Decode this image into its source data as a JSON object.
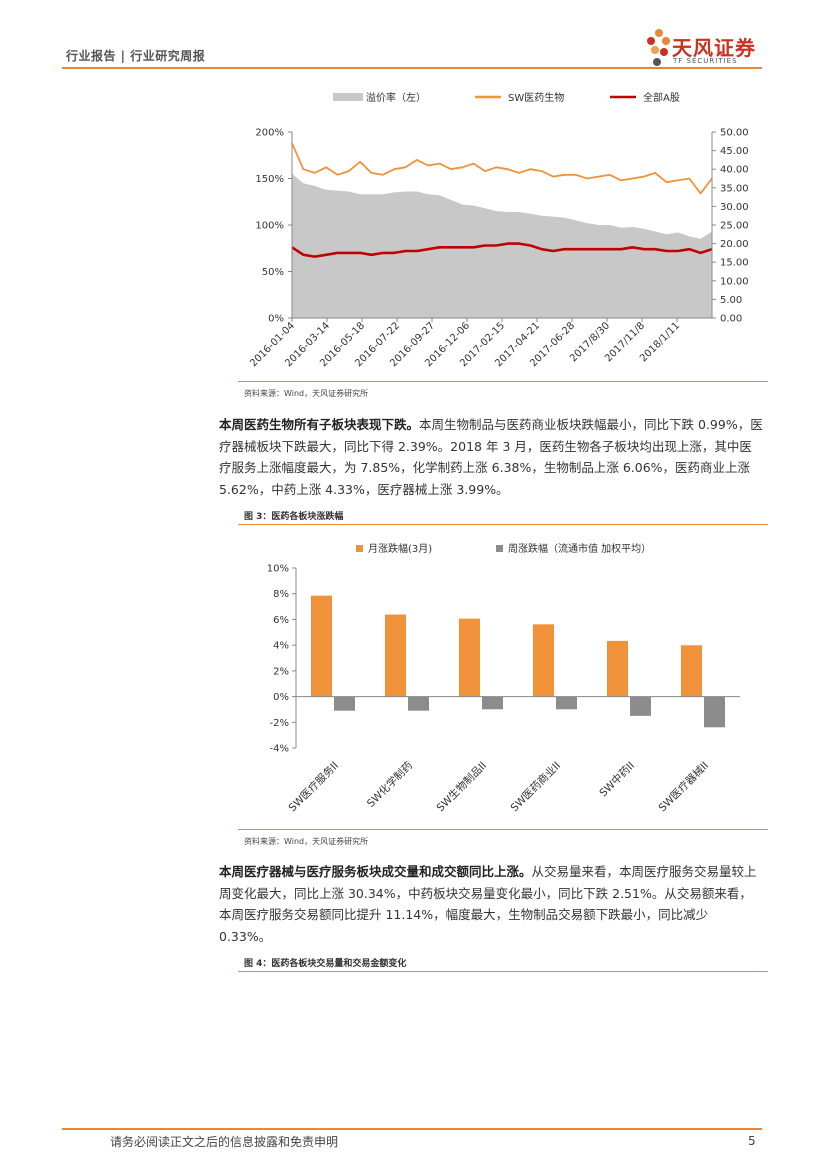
{
  "header": {
    "left_text": "行业报告 | 行业研究周报",
    "logo_name": "天风证券",
    "logo_sub": "TF SECURITIES"
  },
  "chart1_source": "资料来源：Wind，天风证券研究所",
  "paragraph1": {
    "bold": "本周医药生物所有子板块表现下跌。",
    "text": "本周生物制品与医药商业板块跌幅最小，同比下跌 0.99%，医疗器械板块下跌最大，同比下得 2.39%。2018 年 3 月，医药生物各子板块均出现上涨，其中医疗服务上涨幅度最大，为 7.85%，化学制药上涨 6.38%，生物制品上涨 6.06%，医药商业上涨 5.62%，中药上涨 4.33%，医疗器械上涨 3.99%。"
  },
  "figure3_caption": "图 3：医药各板块涨跌幅",
  "chart2_source": "资料来源：Wind，天风证券研究所",
  "paragraph2": {
    "bold": "本周医疗器械与医疗服务板块成交量和成交额同比上涨。",
    "text": "从交易量来看，本周医疗服务交易量较上周变化最大，同比上涨 30.34%，中药板块交易量变化最小，同比下跌 2.51%。从交易额来看，本周医疗服务交易额同比提升 11.14%，幅度最大，生物制品交易额下跌最小，同比减少 0.33%。"
  },
  "figure4_caption": "图 4：医药各板块交易量和交易金额变化",
  "footer": {
    "disclaimer": "请务必阅读正文之后的信息披露和免责申明",
    "page": "5"
  },
  "colors": {
    "accent": "#e8873a",
    "orange": "#f0923a",
    "red": "#c00000",
    "gray": "#c8c8c8",
    "bar_gray": "#8c8c8c"
  },
  "chart_data": [
    {
      "type": "area",
      "title": "",
      "legend": [
        "溢价率（左）",
        "SW医药生物",
        "全部A股"
      ],
      "x_ticks": [
        "2016-01-04",
        "2016-03-14",
        "2016-05-18",
        "2016-07-22",
        "2016-09-27",
        "2016-12-06",
        "2017-02-15",
        "2017-04-21",
        "2017-06-28",
        "2017/8/30",
        "2017/11/8",
        "2018/1/11"
      ],
      "left_axis": {
        "ylim": [
          0,
          2
        ],
        "ticks": [
          "0%",
          "50%",
          "100%",
          "150%",
          "200%"
        ]
      },
      "right_axis": {
        "ylim": [
          0,
          50
        ],
        "ticks": [
          "0.00",
          "5.00",
          "10.00",
          "15.00",
          "20.00",
          "25.00",
          "30.00",
          "35.00",
          "40.00",
          "45.00",
          "50.00"
        ]
      },
      "series": [
        {
          "name": "溢价率（左）",
          "axis": "left",
          "kind": "area",
          "values": [
            1.55,
            1.45,
            1.42,
            1.38,
            1.37,
            1.36,
            1.33,
            1.33,
            1.33,
            1.35,
            1.36,
            1.36,
            1.33,
            1.32,
            1.27,
            1.22,
            1.21,
            1.18,
            1.15,
            1.14,
            1.14,
            1.12,
            1.1,
            1.09,
            1.08,
            1.05,
            1.02,
            1.0,
            1.0,
            0.97,
            0.98,
            0.96,
            0.93,
            0.9,
            0.92,
            0.88,
            0.85,
            0.93
          ]
        },
        {
          "name": "SW医药生物",
          "axis": "right",
          "kind": "line",
          "values": [
            47.0,
            40.0,
            39.0,
            40.5,
            38.5,
            39.5,
            42.0,
            39.0,
            38.5,
            40.0,
            40.5,
            42.5,
            41.0,
            41.5,
            40.0,
            40.5,
            41.5,
            39.5,
            40.5,
            40.0,
            39.0,
            40.0,
            39.5,
            38.0,
            38.5,
            38.5,
            37.5,
            38.0,
            38.5,
            37.0,
            37.5,
            38.0,
            39.0,
            36.5,
            37.0,
            37.5,
            33.5,
            37.5
          ]
        },
        {
          "name": "全部A股",
          "axis": "right",
          "kind": "line",
          "values": [
            19.0,
            17.0,
            16.5,
            17.0,
            17.5,
            17.5,
            17.5,
            17.0,
            17.5,
            17.5,
            18.0,
            18.0,
            18.5,
            19.0,
            19.0,
            19.0,
            19.0,
            19.5,
            19.5,
            20.0,
            20.0,
            19.5,
            18.5,
            18.0,
            18.5,
            18.5,
            18.5,
            18.5,
            18.5,
            18.5,
            19.0,
            18.5,
            18.5,
            18.0,
            18.0,
            18.5,
            17.5,
            18.5
          ]
        }
      ]
    },
    {
      "type": "bar",
      "title": "",
      "categories": [
        "SW医疗服务II",
        "SW化学制药",
        "SW生物制品II",
        "SW医药商业II",
        "SW中药II",
        "SW医疗器械II"
      ],
      "series": [
        {
          "name": "月涨跌幅(3月)",
          "values": [
            7.85,
            6.38,
            6.06,
            5.62,
            4.33,
            3.99
          ]
        },
        {
          "name": "周涨跌幅（流通市值 加权平均）",
          "values": [
            -1.1,
            -1.1,
            -0.99,
            -0.99,
            -1.5,
            -2.39
          ]
        }
      ],
      "ylim": [
        -4,
        10
      ],
      "y_ticks": [
        "-4%",
        "-2%",
        "0%",
        "2%",
        "4%",
        "6%",
        "8%",
        "10%"
      ],
      "xlabel": "",
      "ylabel": ""
    }
  ]
}
